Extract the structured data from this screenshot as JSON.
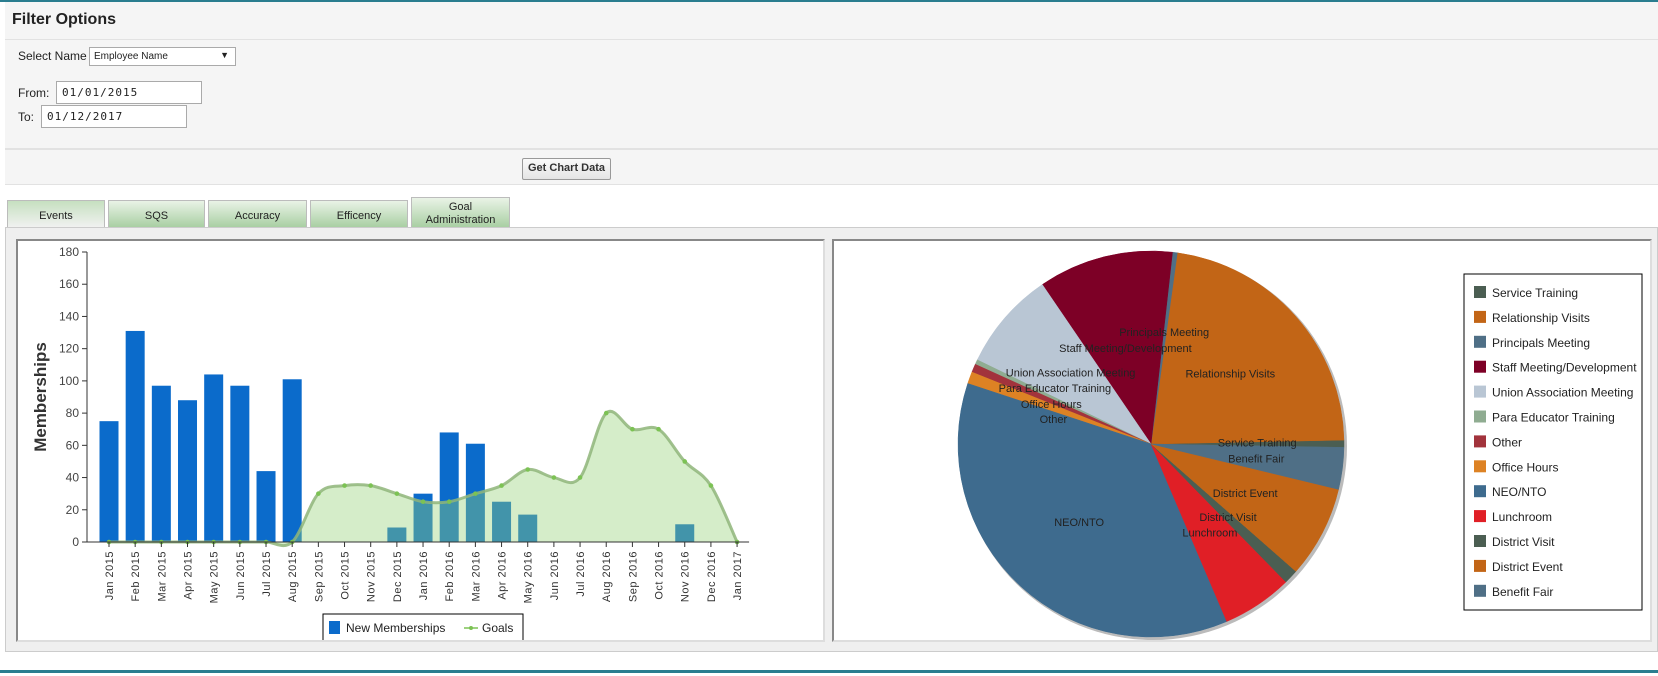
{
  "header": {
    "title": "Filter Options"
  },
  "filters": {
    "select_name_label": "Select Name",
    "select_name_value": "Employee Name",
    "from_label": "From:",
    "from_value": "01/01/2015",
    "to_label": "To:",
    "to_value": "01/12/2017",
    "submit_label": "Get Chart Data"
  },
  "tabs": [
    {
      "label": "Events"
    },
    {
      "label": "SQS"
    },
    {
      "label": "Accuracy"
    },
    {
      "label": "Efficency"
    },
    {
      "label": "Goal Administration"
    }
  ],
  "chart_data": [
    {
      "type": "bar",
      "ylabel": "Memberships",
      "xlabel": "",
      "ylim": [
        0,
        180
      ],
      "yticks": [
        0,
        20,
        40,
        60,
        80,
        100,
        120,
        140,
        160,
        180
      ],
      "categories": [
        "Jan 2015",
        "Feb 2015",
        "Mar 2015",
        "Apr 2015",
        "May 2015",
        "Jun 2015",
        "Jul 2015",
        "Aug 2015",
        "Sep 2015",
        "Oct 2015",
        "Nov 2015",
        "Dec 2015",
        "Jan 2016",
        "Feb 2016",
        "Mar 2016",
        "Apr 2016",
        "May 2016",
        "Jun 2016",
        "Jul 2016",
        "Aug 2016",
        "Sep 2016",
        "Oct 2016",
        "Nov 2016",
        "Dec 2016",
        "Jan 2017"
      ],
      "series": [
        {
          "name": "New Memberships",
          "type": "bar",
          "color": "#0b6bcb",
          "values": [
            75,
            131,
            97,
            88,
            104,
            97,
            44,
            101,
            0,
            0,
            0,
            9,
            30,
            68,
            61,
            25,
            17,
            0,
            0,
            0,
            0,
            0,
            11,
            0,
            0
          ]
        },
        {
          "name": "Goals",
          "type": "area",
          "color": "#7cb85a",
          "values": [
            0,
            0,
            0,
            0,
            0,
            0,
            0,
            0,
            30,
            35,
            35,
            30,
            25,
            25,
            30,
            35,
            45,
            40,
            40,
            80,
            70,
            70,
            50,
            35,
            0
          ]
        }
      ],
      "legend": "bottom"
    },
    {
      "type": "pie",
      "legend": "right",
      "slices": [
        {
          "label": "Service Training",
          "value": 0.6,
          "color": "#4b5e52"
        },
        {
          "label": "Relationship Visits",
          "value": 22.5,
          "color": "#c26516"
        },
        {
          "label": "Principals Meeting",
          "value": 0.4,
          "color": "#4f6f86"
        },
        {
          "label": "Staff Meeting/Development",
          "value": 11.3,
          "color": "#7d0026"
        },
        {
          "label": "Union Association Meeting",
          "value": 8.3,
          "color": "#b9c6d4"
        },
        {
          "label": "Para Educator Training",
          "value": 0.4,
          "color": "#8fac91"
        },
        {
          "label": "Other",
          "value": 0.7,
          "color": "#a2333c"
        },
        {
          "label": "Office Hours",
          "value": 1.0,
          "color": "#dd8224"
        },
        {
          "label": "NEO/NTO",
          "value": 36.5,
          "color": "#3e6b8e"
        },
        {
          "label": "Lunchroom",
          "value": 5.9,
          "color": "#e01f26"
        },
        {
          "label": "District Visit",
          "value": 1.2,
          "color": "#4b5e52"
        },
        {
          "label": "District Event",
          "value": 7.7,
          "color": "#c26516"
        },
        {
          "label": "Benefit Fair",
          "value": 3.5,
          "color": "#4f6f86"
        }
      ]
    }
  ]
}
